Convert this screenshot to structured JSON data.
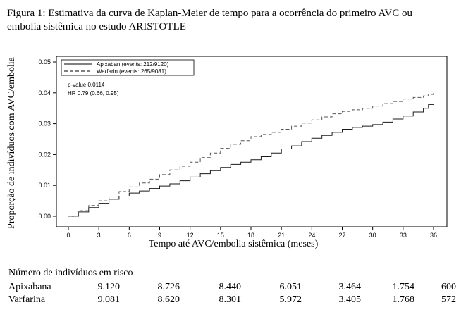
{
  "caption": {
    "line1": "Figura 1: Estimativa da curva de Kaplan-Meier de tempo para a ocorrência do primeiro AVC ou",
    "line2": "embolia sistêmica no estudo ARISTOTLE"
  },
  "chart_data": {
    "type": "line",
    "ylabel": "Proporção de indivíduos com AVC/embolia",
    "xlabel": "Tempo até AVC/embolia sistêmica (meses)",
    "xlim": [
      0,
      36
    ],
    "ylim": [
      0,
      0.05
    ],
    "x_ticks": [
      "0",
      "3",
      "6",
      "9",
      "12",
      "15",
      "18",
      "21",
      "24",
      "27",
      "30",
      "33",
      "36"
    ],
    "y_ticks": [
      "0.00",
      "0.01",
      "0.02",
      "0.03",
      "0.04",
      "0.05"
    ],
    "grid": false,
    "legend_position": "top-left",
    "annotations": [
      "p-value 0.0114",
      "HR 0.79  (0.66, 0.95)"
    ],
    "series": [
      {
        "name": "Apixaban (events: 212/9120)",
        "style": "solid",
        "x": [
          0,
          1,
          2,
          3,
          4,
          5,
          6,
          7,
          8,
          9,
          10,
          11,
          12,
          13,
          14,
          15,
          16,
          17,
          18,
          19,
          20,
          21,
          22,
          23,
          24,
          25,
          26,
          27,
          28,
          29,
          30,
          31,
          32,
          33,
          34,
          35,
          35.5,
          36
        ],
        "y": [
          0,
          0.0014,
          0.0028,
          0.0042,
          0.0055,
          0.0065,
          0.0075,
          0.0082,
          0.009,
          0.0098,
          0.0105,
          0.0115,
          0.0127,
          0.0138,
          0.0148,
          0.0158,
          0.0168,
          0.0175,
          0.0183,
          0.0193,
          0.0205,
          0.0218,
          0.0228,
          0.0242,
          0.0253,
          0.0262,
          0.0272,
          0.0282,
          0.0288,
          0.0292,
          0.0297,
          0.0305,
          0.0315,
          0.0325,
          0.0338,
          0.035,
          0.0362,
          0.0365
        ]
      },
      {
        "name": "Warfarin (events: 265/9081)",
        "style": "dashed",
        "x": [
          0,
          1,
          2,
          3,
          4,
          5,
          6,
          7,
          8,
          9,
          10,
          11,
          12,
          13,
          14,
          15,
          16,
          17,
          18,
          19,
          20,
          21,
          22,
          23,
          24,
          25,
          26,
          27,
          28,
          29,
          30,
          31,
          32,
          33,
          34,
          35,
          35.5,
          36
        ],
        "y": [
          0,
          0.0018,
          0.0035,
          0.005,
          0.0065,
          0.008,
          0.0095,
          0.0108,
          0.012,
          0.0135,
          0.015,
          0.0162,
          0.0175,
          0.019,
          0.0205,
          0.022,
          0.0233,
          0.0245,
          0.0258,
          0.0265,
          0.0272,
          0.0282,
          0.0292,
          0.0302,
          0.0312,
          0.0322,
          0.0332,
          0.034,
          0.0345,
          0.035,
          0.0357,
          0.0365,
          0.0372,
          0.038,
          0.0385,
          0.039,
          0.0395,
          0.0403
        ]
      }
    ]
  },
  "risk_table": {
    "title": "Número de indivíduos em risco",
    "rows": [
      {
        "name": "Apixabana",
        "values": [
          "9.120",
          "8.726",
          "8.440",
          "6.051",
          "3.464",
          "1.754",
          "600"
        ]
      },
      {
        "name": "Varfarina",
        "values": [
          "9.081",
          "8.620",
          "8.301",
          "5.972",
          "3.405",
          "1.768",
          "572"
        ]
      }
    ]
  }
}
